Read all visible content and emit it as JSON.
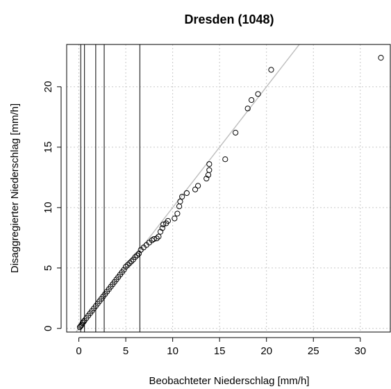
{
  "chart_data": {
    "type": "scatter",
    "title": "Dresden (1048)",
    "xlabel": "Beobachteter Niederschlag [mm/h]",
    "ylabel": "Disaggregierter Niederschlag [mm/h]",
    "xlim": [
      -1.3,
      33.2
    ],
    "ylim": [
      -0.3,
      23.5
    ],
    "x_ticks": [
      0,
      5,
      10,
      15,
      20,
      25,
      30
    ],
    "y_ticks": [
      0,
      5,
      10,
      15,
      20
    ],
    "grid": true,
    "reference_line": {
      "intercept": 0,
      "slope": 1
    },
    "vertical_lines": [
      0.2,
      0.6,
      1.8,
      2.7,
      6.5
    ],
    "points": [
      [
        0.1,
        0.1
      ],
      [
        0.2,
        0.2
      ],
      [
        0.3,
        0.3
      ],
      [
        0.4,
        0.45
      ],
      [
        0.5,
        0.55
      ],
      [
        0.6,
        0.65
      ],
      [
        0.8,
        0.85
      ],
      [
        1.0,
        1.05
      ],
      [
        1.2,
        1.25
      ],
      [
        1.4,
        1.45
      ],
      [
        1.6,
        1.65
      ],
      [
        1.8,
        1.85
      ],
      [
        2.0,
        2.05
      ],
      [
        2.2,
        2.25
      ],
      [
        2.4,
        2.45
      ],
      [
        2.6,
        2.65
      ],
      [
        2.8,
        2.85
      ],
      [
        3.0,
        3.05
      ],
      [
        3.2,
        3.25
      ],
      [
        3.4,
        3.45
      ],
      [
        3.6,
        3.65
      ],
      [
        3.8,
        3.85
      ],
      [
        4.0,
        4.05
      ],
      [
        4.2,
        4.25
      ],
      [
        4.4,
        4.45
      ],
      [
        4.6,
        4.65
      ],
      [
        4.8,
        4.85
      ],
      [
        5.0,
        5.1
      ],
      [
        5.2,
        5.25
      ],
      [
        5.4,
        5.4
      ],
      [
        5.6,
        5.55
      ],
      [
        5.8,
        5.7
      ],
      [
        6.0,
        5.9
      ],
      [
        6.2,
        6.05
      ],
      [
        6.4,
        6.2
      ],
      [
        6.6,
        6.5
      ],
      [
        6.9,
        6.7
      ],
      [
        7.2,
        6.9
      ],
      [
        7.5,
        7.1
      ],
      [
        7.8,
        7.3
      ],
      [
        8.0,
        7.4
      ],
      [
        8.3,
        7.45
      ],
      [
        8.5,
        7.6
      ],
      [
        8.7,
        8.0
      ],
      [
        8.9,
        8.3
      ],
      [
        9.0,
        8.6
      ],
      [
        9.3,
        8.7
      ],
      [
        9.5,
        8.9
      ],
      [
        10.2,
        9.1
      ],
      [
        10.5,
        9.5
      ],
      [
        10.7,
        10.1
      ],
      [
        10.8,
        10.5
      ],
      [
        11.0,
        10.9
      ],
      [
        11.5,
        11.2
      ],
      [
        12.4,
        11.5
      ],
      [
        12.7,
        11.8
      ],
      [
        13.6,
        12.4
      ],
      [
        13.8,
        12.7
      ],
      [
        13.9,
        13.1
      ],
      [
        13.9,
        13.6
      ],
      [
        15.6,
        14.0
      ],
      [
        16.7,
        16.2
      ],
      [
        18.0,
        18.2
      ],
      [
        18.4,
        18.9
      ],
      [
        19.1,
        19.4
      ],
      [
        20.5,
        21.4
      ],
      [
        32.2,
        22.4
      ]
    ]
  }
}
